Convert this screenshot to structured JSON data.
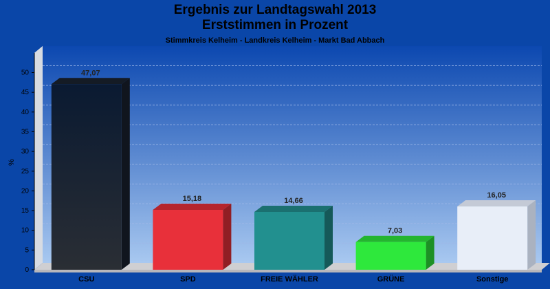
{
  "titles": {
    "line1": "Ergebnis zur Landtagswahl 2013",
    "line2": "Erststimmen in Prozent",
    "subtitle": "Stimmkreis Kelheim - Landkreis Kelheim - Markt Bad Abbach"
  },
  "chart_data": {
    "type": "bar",
    "ylabel": "%",
    "ylim": [
      0,
      55
    ],
    "yticks": [
      0,
      5,
      10,
      15,
      20,
      25,
      30,
      35,
      40,
      45,
      50
    ],
    "grid": true,
    "categories": [
      "CSU",
      "SPD",
      "FREIE WÄHLER",
      "GRÜNE",
      "Sonstige"
    ],
    "values": [
      47.07,
      15.18,
      14.66,
      7.03,
      16.05
    ],
    "value_labels": [
      "47,07",
      "15,18",
      "14,66",
      "7,03",
      "16,05"
    ],
    "colors": [
      "#1a2230",
      "#e8303a",
      "#22908f",
      "#2ee83c",
      "#e8eef8"
    ]
  }
}
